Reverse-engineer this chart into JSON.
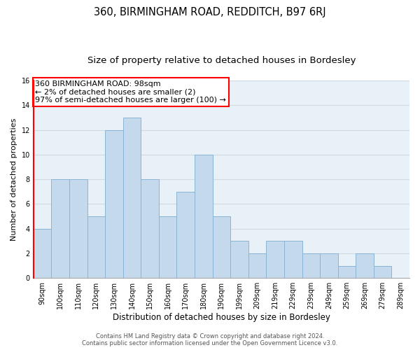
{
  "title": "360, BIRMINGHAM ROAD, REDDITCH, B97 6RJ",
  "subtitle": "Size of property relative to detached houses in Bordesley",
  "xlabel": "Distribution of detached houses by size in Bordesley",
  "ylabel": "Number of detached properties",
  "bar_labels": [
    "90sqm",
    "100sqm",
    "110sqm",
    "120sqm",
    "130sqm",
    "140sqm",
    "150sqm",
    "160sqm",
    "170sqm",
    "180sqm",
    "190sqm",
    "199sqm",
    "209sqm",
    "219sqm",
    "229sqm",
    "239sqm",
    "249sqm",
    "259sqm",
    "269sqm",
    "279sqm",
    "289sqm"
  ],
  "bar_values": [
    4,
    8,
    8,
    5,
    12,
    13,
    8,
    5,
    7,
    10,
    5,
    3,
    2,
    3,
    3,
    2,
    2,
    1,
    2,
    1,
    0
  ],
  "bar_color": "#c5d9ed",
  "bar_edgecolor": "#8ab4d4",
  "annotation_text": "360 BIRMINGHAM ROAD: 98sqm\n← 2% of detached houses are smaller (2)\n97% of semi-detached houses are larger (100) →",
  "annotation_box_color": "white",
  "annotation_box_edgecolor": "red",
  "red_line_color": "red",
  "ylim": [
    0,
    16
  ],
  "yticks": [
    0,
    2,
    4,
    6,
    8,
    10,
    12,
    14,
    16
  ],
  "grid_color": "#d0d8e0",
  "bg_color": "#e8f0f8",
  "footer_line1": "Contains HM Land Registry data © Crown copyright and database right 2024.",
  "footer_line2": "Contains public sector information licensed under the Open Government Licence v3.0.",
  "title_fontsize": 10.5,
  "subtitle_fontsize": 9.5,
  "xlabel_fontsize": 8.5,
  "ylabel_fontsize": 8,
  "tick_fontsize": 7,
  "footer_fontsize": 6,
  "annot_fontsize": 8
}
